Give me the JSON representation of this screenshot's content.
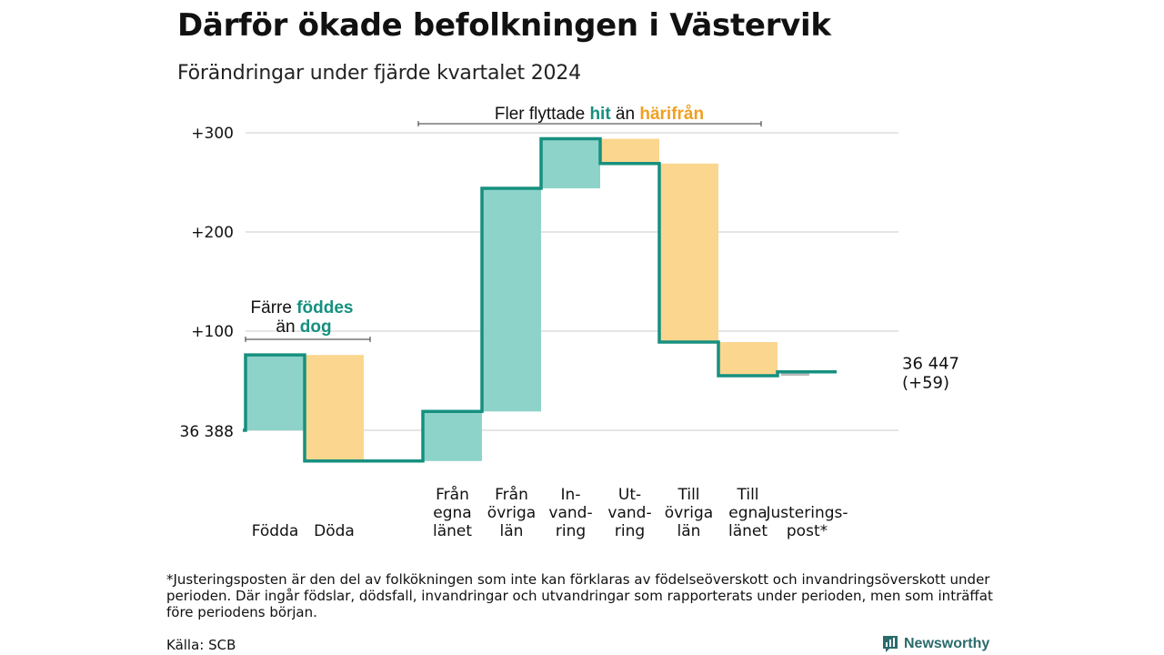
{
  "title": "Därför ökade befolkningen i Västervik",
  "subtitle": "Förändringar under fjärde kvartalet 2024",
  "chart_data": {
    "type": "waterfall",
    "start_value": 36388,
    "start_label": "36 388",
    "end_label_lines": [
      "36 447",
      "(+59)"
    ],
    "ylim": [
      -30,
      315
    ],
    "y_ticks": [
      {
        "value": 100,
        "label": "+100"
      },
      {
        "value": 200,
        "label": "+200"
      },
      {
        "value": 300,
        "label": "+300"
      }
    ],
    "steps": [
      {
        "category_lines": [
          "Födda"
        ],
        "value": 76,
        "direction": "in"
      },
      {
        "category_lines": [
          "Döda"
        ],
        "value": -107,
        "direction": "out"
      },
      {
        "category_lines": [],
        "value": 0,
        "direction": "gap"
      },
      {
        "category_lines": [
          "Från",
          "egna",
          "länet"
        ],
        "value": 50,
        "direction": "in"
      },
      {
        "category_lines": [
          "Från",
          "övriga",
          "län"
        ],
        "value": 225,
        "direction": "in"
      },
      {
        "category_lines": [
          "In-",
          "vand-",
          "ring"
        ],
        "value": 50,
        "direction": "in"
      },
      {
        "category_lines": [
          "Ut-",
          "vand-",
          "ring"
        ],
        "value": -25,
        "direction": "out"
      },
      {
        "category_lines": [
          "Till",
          "övriga",
          "län"
        ],
        "value": -180,
        "direction": "out"
      },
      {
        "category_lines": [
          "Till",
          "egna",
          "länet"
        ],
        "value": -34,
        "direction": "out"
      },
      {
        "category_lines": [
          "Justerings-",
          "post*"
        ],
        "value": 4,
        "direction": "adjustment"
      }
    ],
    "annotations": [
      {
        "lines": [
          [
            "Färre ",
            "föddes"
          ],
          [
            "än ",
            "dog"
          ]
        ]
      },
      {
        "lines": [
          [
            "Fler flyttade ",
            "hit",
            " än ",
            "härifrån"
          ]
        ]
      }
    ],
    "colors": {
      "in": "#8dd3ca",
      "out": "#fbd68f",
      "adjustment": "#bbbbbb",
      "line": "#16907f",
      "in_text": "#16907f",
      "out_text": "#f0a020",
      "grid": "#dddddd"
    },
    "grid": true
  },
  "footnote": "*Justeringsposten är den del av folkökningen som inte kan förklaras av födelseöverskott och invandringsöverskott under perioden. Där ingår födslar, dödsfall, invandringar och utvandringar som rapporterats under perioden, men som inträffat före periodens början.",
  "source": "Källa: SCB",
  "brand": {
    "name": "Newsworthy",
    "icon": "newsworthy-logo-icon"
  }
}
